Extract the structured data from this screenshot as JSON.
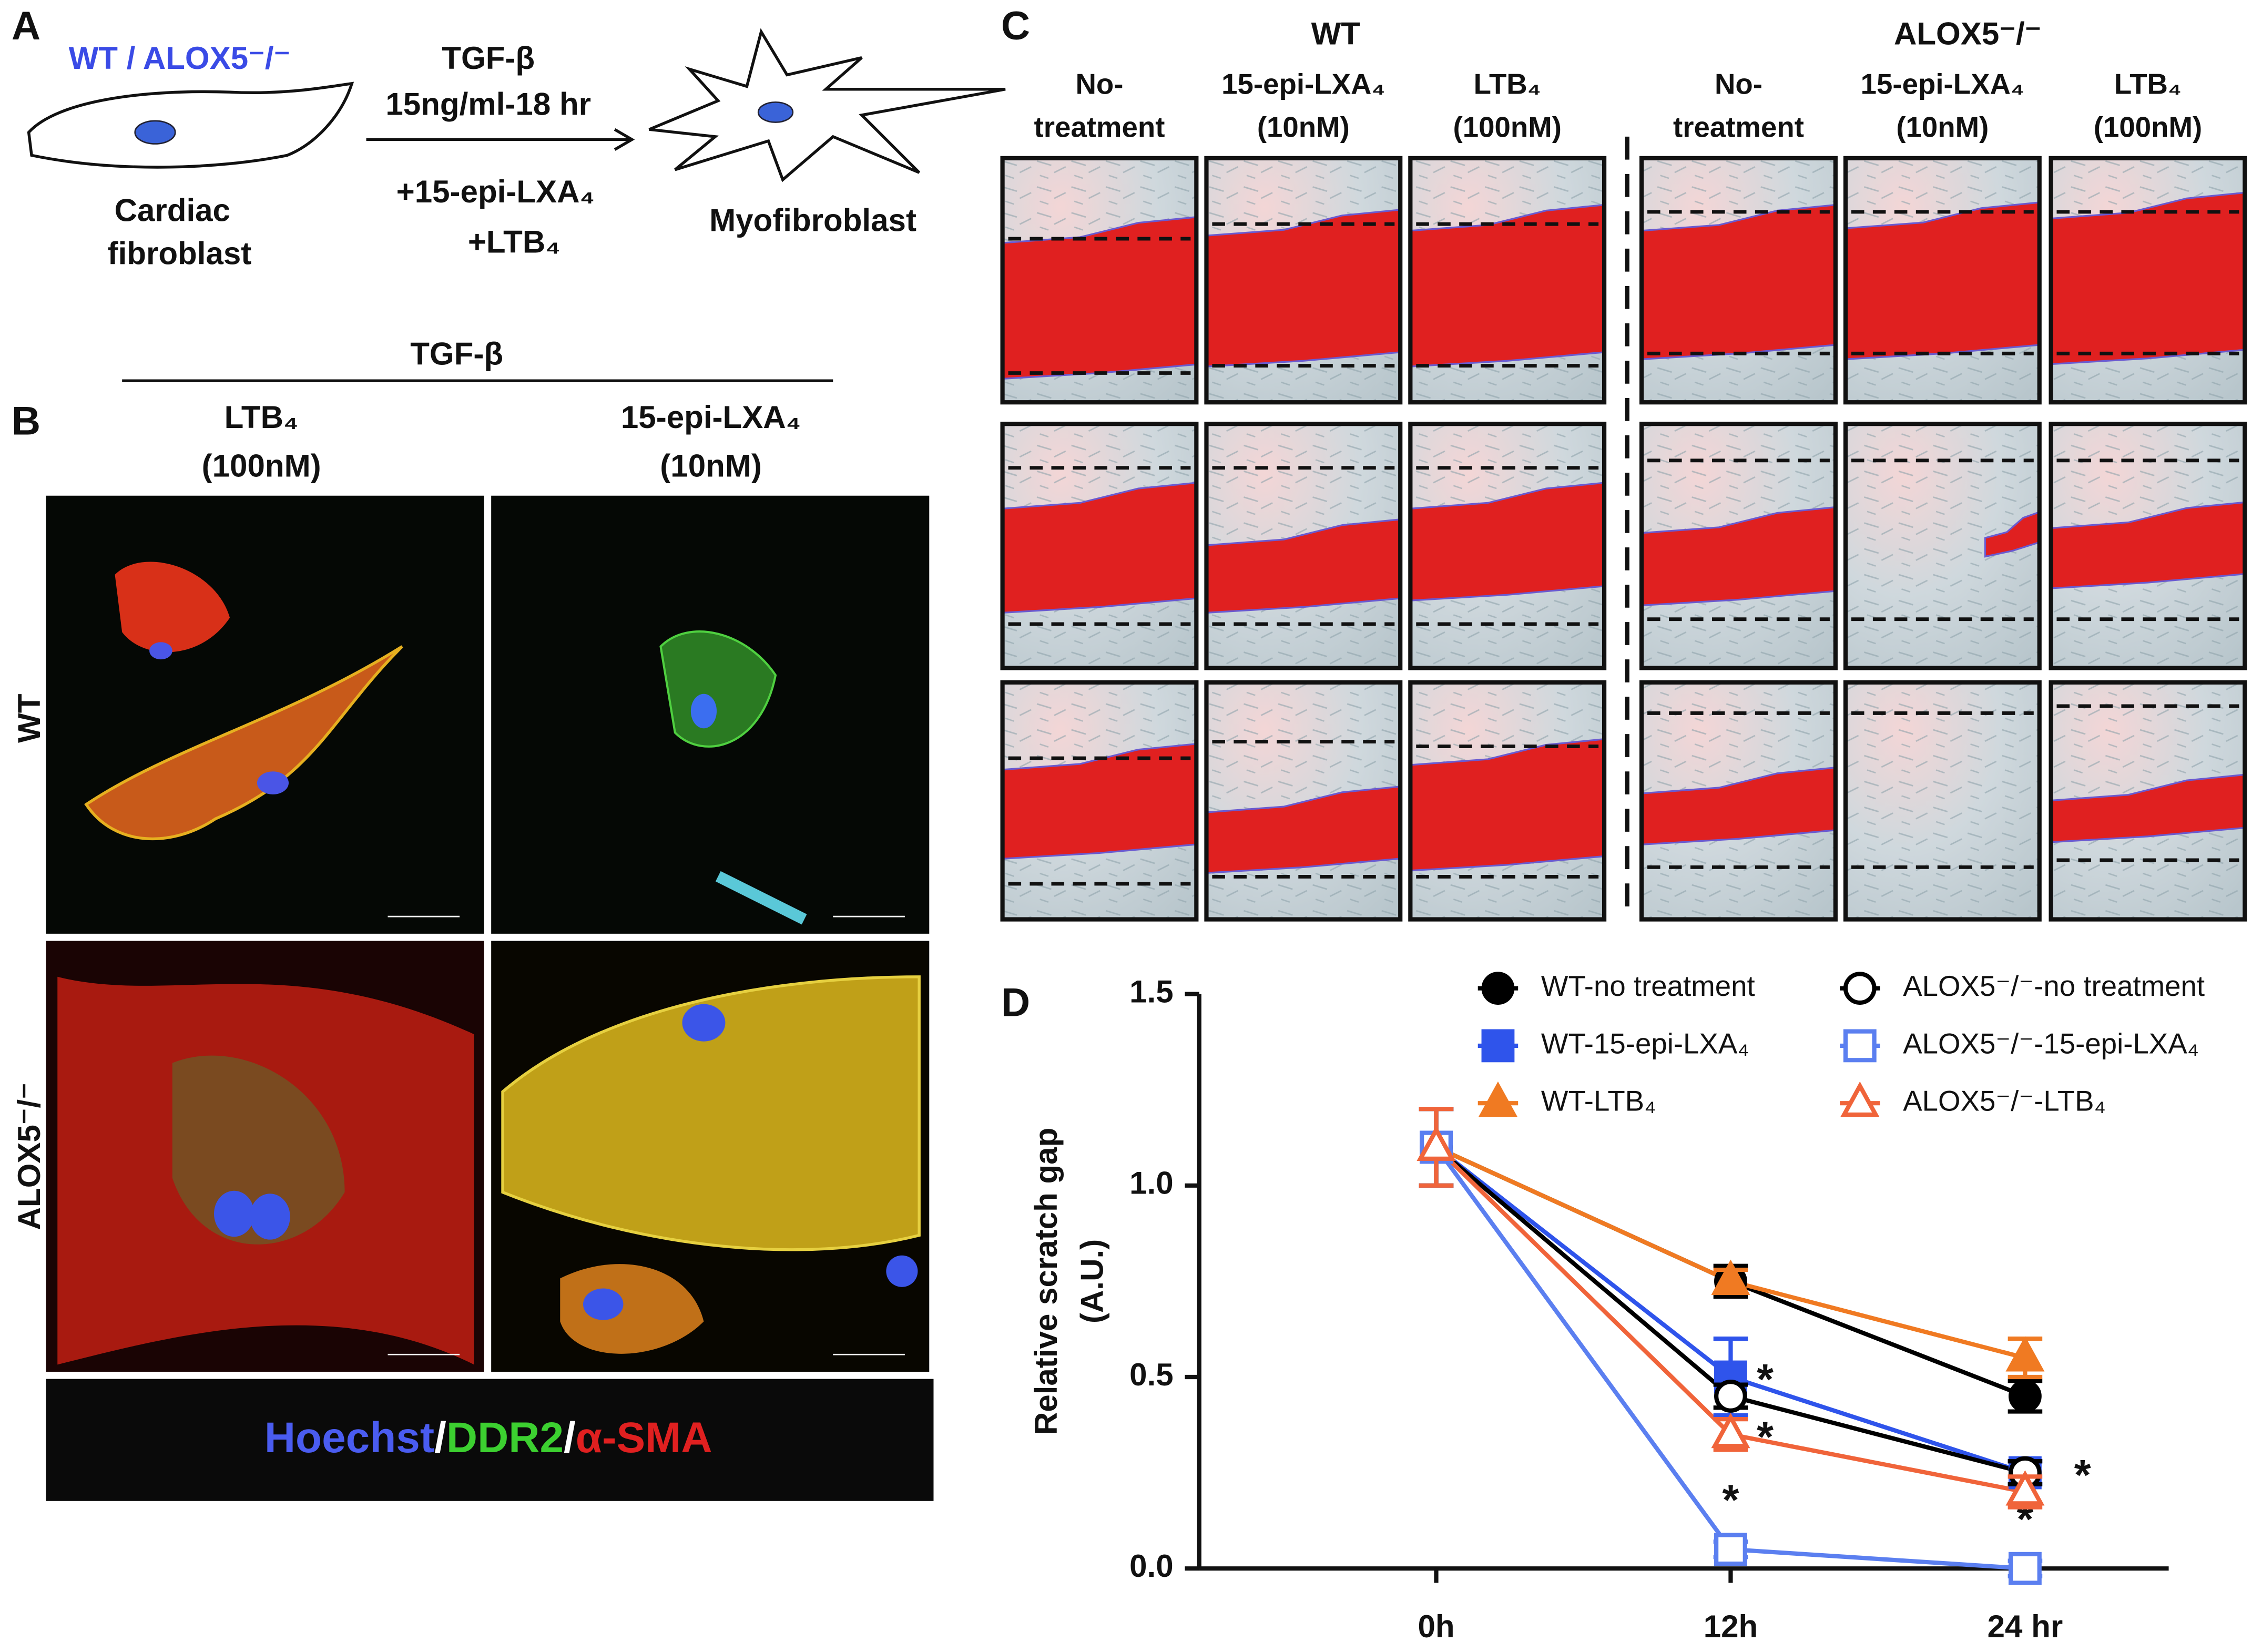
{
  "panel_a": {
    "label": "A",
    "genotype": "WT / ALOX5⁻/⁻",
    "treatment": [
      "TGF-β",
      "15ng/ml-18 hr"
    ],
    "additions": [
      "+15-epi-LXA₄",
      "+LTB₄"
    ],
    "start_cell": [
      "Cardiac",
      "fibroblast"
    ],
    "end_cell": "Myofibroblast"
  },
  "panel_b": {
    "label": "B",
    "group": "TGF-β",
    "columns": [
      [
        "LTB₄",
        "(100nM)"
      ],
      [
        "15-epi-LXA₄",
        "(10nM)"
      ]
    ],
    "rows": [
      "WT",
      "ALOX5⁻/⁻"
    ],
    "stains": [
      "Hoechst",
      "/",
      "DDR2",
      "/",
      "α-SMA"
    ]
  },
  "panel_c": {
    "label": "C",
    "groups": [
      "WT",
      "ALOX5⁻/⁻"
    ],
    "columns": [
      [
        "No-",
        "treatment"
      ],
      [
        "15-epi-LXA₄",
        "(10nM)"
      ],
      [
        "LTB₄",
        "(100nM)"
      ],
      [
        "No-",
        "treatment"
      ],
      [
        "15-epi-LXA₄",
        "(10nM)"
      ],
      [
        "LTB₄",
        "(100nM)"
      ]
    ]
  },
  "panel_d": {
    "label": "D"
  },
  "chart_data": {
    "type": "line",
    "categories": [
      "0h",
      "12h",
      "24 hr"
    ],
    "y_label": [
      "Relative scratch gap",
      "(A.U.)"
    ],
    "ylim": [
      0,
      1.5
    ],
    "yticks": [
      {
        "value": 0,
        "label": "0.0"
      },
      {
        "value": 0.5,
        "label": "0.5"
      },
      {
        "value": 1,
        "label": "1.0"
      },
      {
        "value": 1.5,
        "label": "1.5"
      }
    ],
    "series": [
      {
        "name": "WT-no treatment",
        "color": "#000000",
        "marker": "circle",
        "filled": true,
        "values": [
          1.1,
          0.75,
          0.45
        ],
        "errors": [
          0.1,
          0.04,
          0.04
        ],
        "stars": [
          null,
          null,
          null
        ]
      },
      {
        "name": "WT-15-epi-LXA₄",
        "color": "#2f54eb",
        "marker": "square",
        "filled": true,
        "values": [
          1.1,
          0.5,
          0.25
        ],
        "errors": [
          0.1,
          0.1,
          0.03
        ],
        "stars": [
          null,
          "*",
          "*"
        ]
      },
      {
        "name": "WT-LTB₄",
        "color": "#f07a22",
        "marker": "triangle",
        "filled": true,
        "values": [
          1.1,
          0.75,
          0.55
        ],
        "errors": [
          0.1,
          0.03,
          0.05
        ],
        "stars": [
          null,
          null,
          null
        ]
      },
      {
        "name": "ALOX5⁻/⁻-no treatment",
        "color": "#000000",
        "marker": "circle",
        "filled": false,
        "values": [
          1.1,
          0.45,
          0.25
        ],
        "errors": [
          0.1,
          0.03,
          0.03
        ],
        "stars": [
          null,
          null,
          null
        ]
      },
      {
        "name": "ALOX5⁻/⁻-15-epi-LXA₄",
        "color": "#5b7ff0",
        "marker": "square",
        "filled": false,
        "values": [
          1.1,
          0.05,
          0
        ],
        "errors": [
          0.1,
          0.02,
          0.02
        ],
        "stars": [
          null,
          "*",
          "*"
        ]
      },
      {
        "name": "ALOX5⁻/⁻-LTB₄",
        "color": "#f0643a",
        "marker": "triangle",
        "filled": false,
        "values": [
          1.1,
          0.35,
          0.2
        ],
        "errors": [
          0.1,
          0.04,
          0.04
        ],
        "stars": [
          null,
          "*",
          null
        ]
      }
    ]
  }
}
